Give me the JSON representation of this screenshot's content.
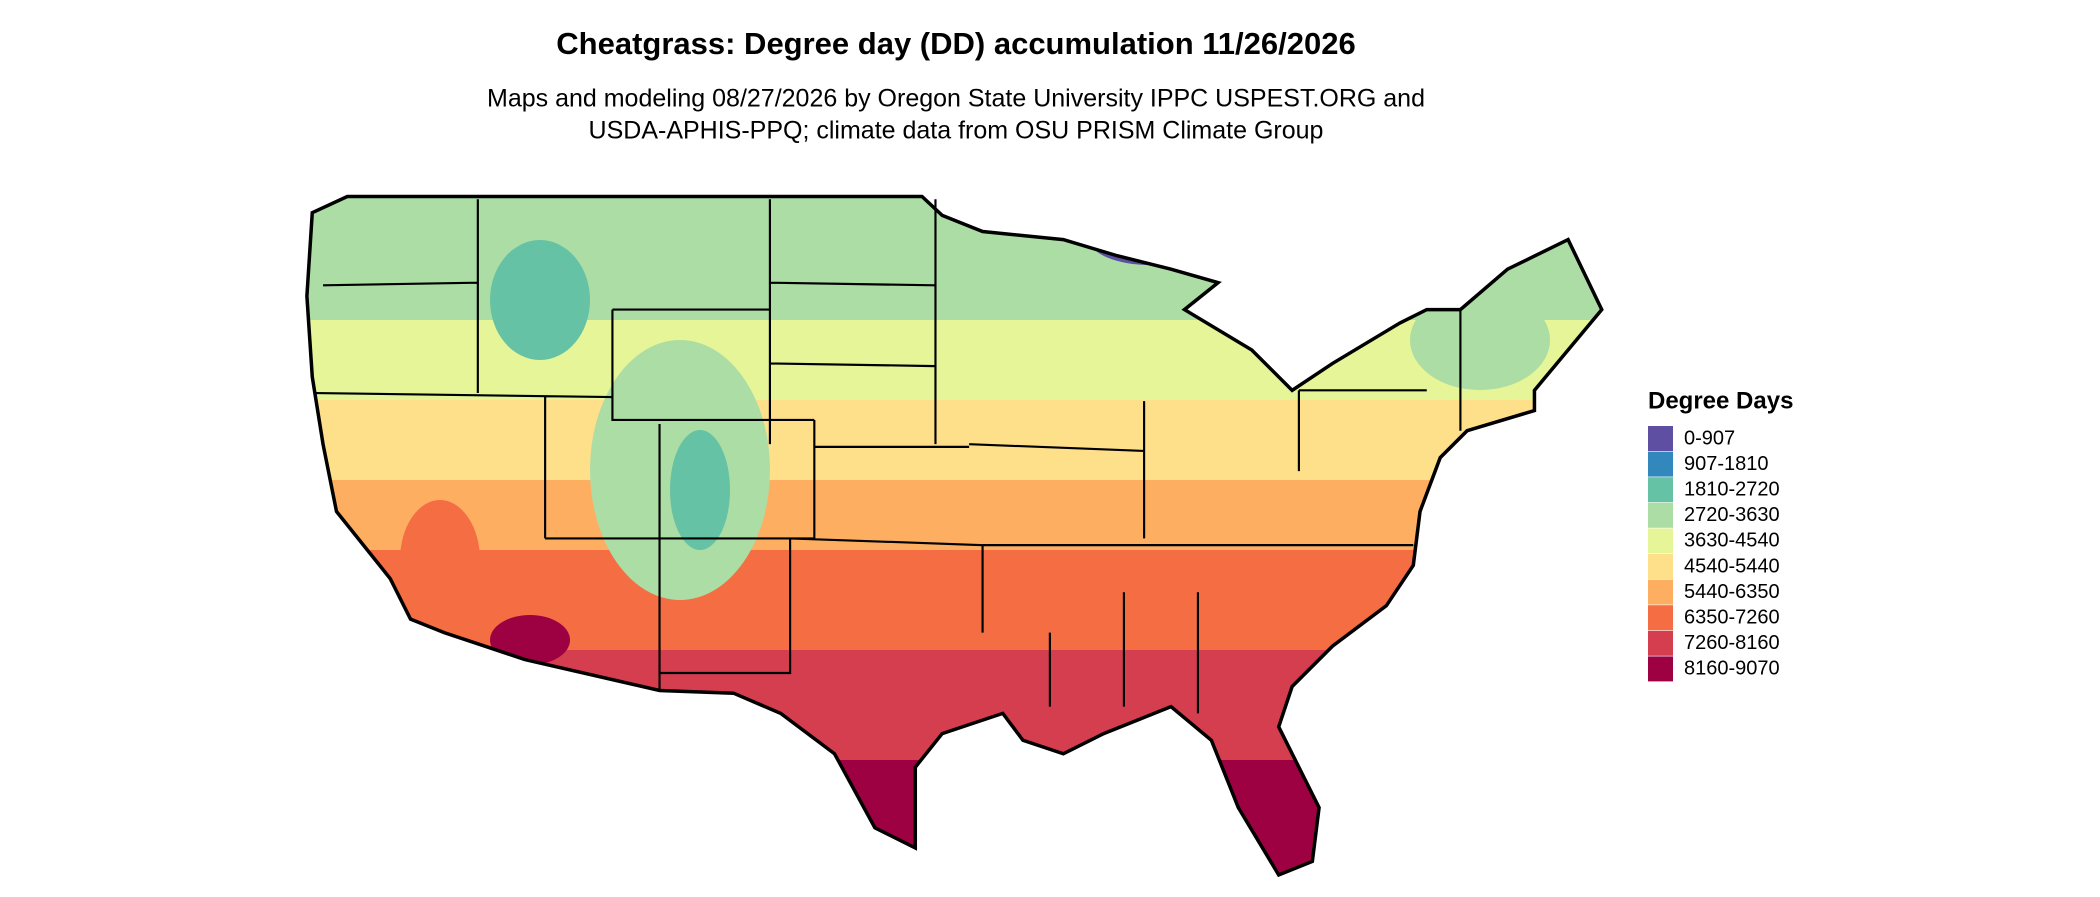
{
  "header": {
    "title": "Cheatgrass: Degree day (DD) accumulation 11/26/2026",
    "subtitle": [
      "Maps and modeling 08/27/2026 by Oregon State University IPPC USPEST.ORG and",
      "USDA-APHIS-PPQ; climate data from OSU PRISM Climate Group"
    ]
  },
  "legend": {
    "title": "Degree Days",
    "items": [
      {
        "label": "0-907",
        "color": "#5e4fa2"
      },
      {
        "label": "907-1810",
        "color": "#3288bd"
      },
      {
        "label": "1810-2720",
        "color": "#66c2a5"
      },
      {
        "label": "2720-3630",
        "color": "#abdda4"
      },
      {
        "label": "3630-4540",
        "color": "#e6f598"
      },
      {
        "label": "4540-5440",
        "color": "#fee08b"
      },
      {
        "label": "5440-6350",
        "color": "#fdae61"
      },
      {
        "label": "6350-7260",
        "color": "#f46d43"
      },
      {
        "label": "7260-8160",
        "color": "#d53e4f"
      },
      {
        "label": "8160-9070",
        "color": "#9e0142"
      }
    ]
  }
}
